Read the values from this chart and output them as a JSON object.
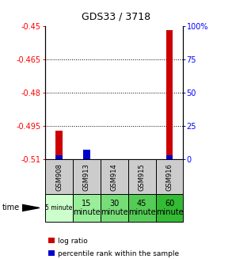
{
  "title": "GDS33 / 3718",
  "samples": [
    "GSM908",
    "GSM913",
    "GSM914",
    "GSM915",
    "GSM916"
  ],
  "time_labels": [
    "5 minute",
    "15\nminute",
    "30\nminute",
    "45\nminute",
    "60\nminute"
  ],
  "time_bg_colors": [
    "#ccffcc",
    "#99ee99",
    "#77dd77",
    "#55cc55",
    "#33bb33"
  ],
  "log_ratio": [
    -0.497,
    -0.506,
    -0.51,
    -0.51,
    -0.452
  ],
  "percentile_rank": [
    3.0,
    7.0,
    0.0,
    0.0,
    3.0
  ],
  "ylim_left": [
    -0.51,
    -0.45
  ],
  "ylim_right": [
    0,
    100
  ],
  "yticks_left": [
    -0.51,
    -0.495,
    -0.48,
    -0.465,
    -0.45
  ],
  "yticks_right": [
    0,
    25,
    50,
    75,
    100
  ],
  "log_color": "#cc0000",
  "pct_color": "#0000cc",
  "bg_color": "#ffffff",
  "sample_bg": "#cccccc",
  "dotted_levels": [
    -0.465,
    -0.48,
    -0.495
  ],
  "legend_log": "log ratio",
  "legend_pct": "percentile rank within the sample"
}
